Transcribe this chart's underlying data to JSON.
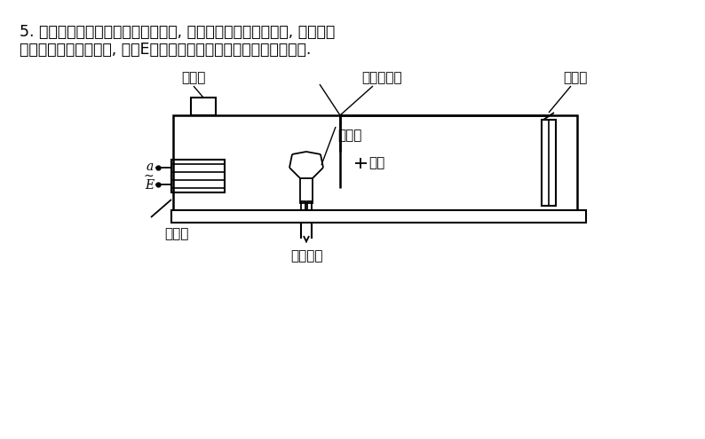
{
  "title_line1": "5. 小文同学学习了有关的物理知识后, 设想制作一个电动充气泵, 她画出了",
  "title_line2": "如图所示的结构示意图, 图中E为电流大小和方向都不断变化的交流电.",
  "bg_color": "#ffffff",
  "line_color": "#000000",
  "label_xiaocitie": "小磁铁",
  "label_tanxing": "弹性金属片",
  "label_gudingduan": "固定端",
  "label_xiangwan": "橡皮碗",
  "label_qishi": "气室",
  "label_diancitie": "电磁铁",
  "label_kongqi": "空气导管",
  "label_a": "a",
  "label_tilde": "~",
  "label_E": "E"
}
